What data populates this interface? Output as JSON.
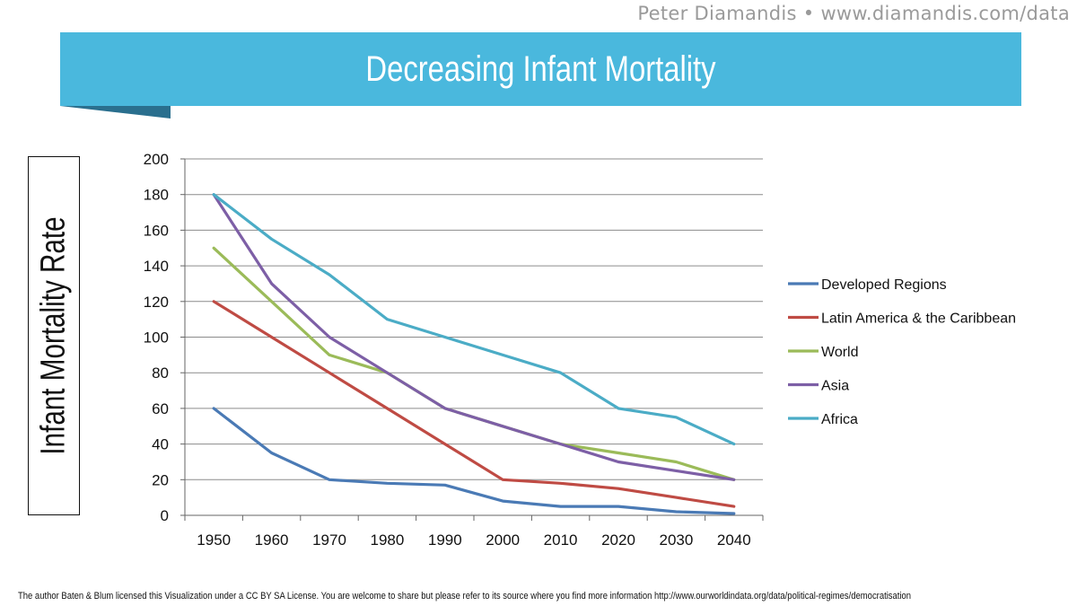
{
  "header": {
    "attribution": "Peter Diamandis • www.diamandis.com/data",
    "title": "Decreasing Infant Mortality"
  },
  "footer": {
    "text": "The author Baten & Blum licensed this Visualization under a CC BY SA License. You are welcome to share but please refer to its source where you find more information http://www.ourworldindata.org/data/political-regimes/democratisation"
  },
  "colors": {
    "banner": "#4ab8dd",
    "banner_fold": "#2a6f8e",
    "grid": "#8c8c8c"
  },
  "chart_data": {
    "type": "line",
    "title": "Decreasing Infant Mortality",
    "xlabel": "",
    "ylabel": "Infant Mortality Rate",
    "ylim": [
      0,
      200
    ],
    "yticks": [
      0,
      20,
      40,
      60,
      80,
      100,
      120,
      140,
      160,
      180,
      200
    ],
    "grid": true,
    "legend_position": "right",
    "x": [
      "1950",
      "1960",
      "1970",
      "1980",
      "1990",
      "2000",
      "2010",
      "2020",
      "2030",
      "2040"
    ],
    "series": [
      {
        "name": "Developed Regions",
        "color": "#4a7ab5",
        "values": [
          60,
          35,
          20,
          18,
          17,
          8,
          5,
          5,
          2,
          1
        ]
      },
      {
        "name": "Latin America & the Caribbean",
        "color": "#bf4b44",
        "values": [
          120,
          100,
          80,
          60,
          40,
          20,
          18,
          15,
          10,
          5
        ]
      },
      {
        "name": "World",
        "color": "#9bbb59",
        "values": [
          150,
          120,
          90,
          80,
          60,
          50,
          40,
          35,
          30,
          20
        ]
      },
      {
        "name": "Asia",
        "color": "#7d5fa6",
        "values": [
          180,
          130,
          100,
          80,
          60,
          50,
          40,
          30,
          25,
          20
        ]
      },
      {
        "name": "Africa",
        "color": "#4bacc6",
        "values": [
          180,
          155,
          135,
          110,
          100,
          90,
          80,
          60,
          55,
          40
        ]
      }
    ]
  }
}
